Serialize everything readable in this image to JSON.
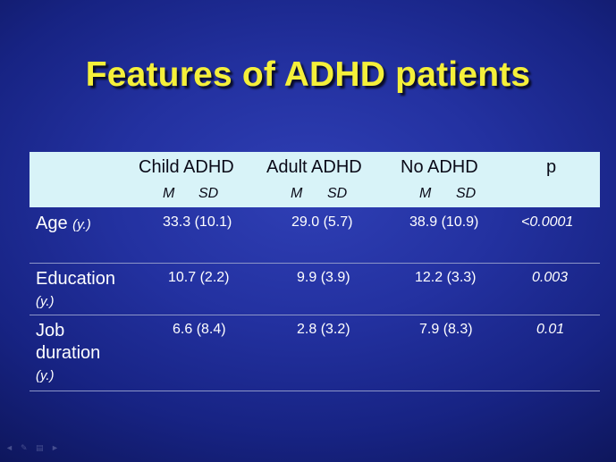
{
  "title": "Features of ADHD patients",
  "table": {
    "columns": [
      {
        "label": "Child ADHD",
        "m": "M",
        "sd": "SD"
      },
      {
        "label": "Adult ADHD",
        "m": "M",
        "sd": "SD"
      },
      {
        "label": "No ADHD",
        "m": "M",
        "sd": "SD"
      },
      {
        "label": "p"
      }
    ],
    "rows": [
      {
        "label": "Age",
        "unit": "(y.)",
        "values": [
          "33.3 (10.1)",
          "29.0 (5.7)",
          "38.9 (10.9)"
        ],
        "p": "<0.0001"
      },
      {
        "label": "Education",
        "unit": "(y.)",
        "values": [
          "10.7 (2.2)",
          "9.9 (3.9)",
          "12.2 (3.3)"
        ],
        "p": "0.003"
      },
      {
        "label_line1": "Job",
        "label_line2": "duration",
        "unit": "(y.)",
        "values": [
          "6.6 (8.4)",
          "2.8 (3.2)",
          "7.9 (8.3)"
        ],
        "p": "0.01"
      }
    ]
  },
  "nav_icons": [
    "prev-arrow-icon",
    "pen-icon",
    "slide-menu-icon",
    "next-arrow-icon"
  ]
}
